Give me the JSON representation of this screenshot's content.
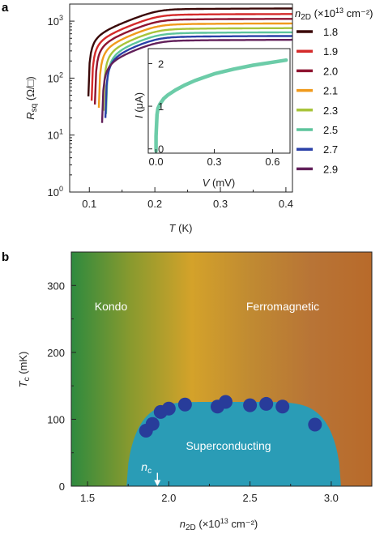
{
  "panels": {
    "a": {
      "letter": "a"
    },
    "b": {
      "letter": "b"
    }
  },
  "chart_data": [
    {
      "panel": "a",
      "type": "line",
      "xlabel_var": "T",
      "xlabel_unit": " (K)",
      "ylabel_var": "R",
      "ylabel_sub": "sq",
      "ylabel_unit": " (Ω/□)",
      "yscale": "log",
      "xlim": [
        0.07,
        0.41
      ],
      "ylim_log10": [
        0,
        3.3
      ],
      "xticks": [
        0.1,
        0.2,
        0.3,
        0.4
      ],
      "xtick_labels": [
        "0.1",
        "0.2",
        "0.3",
        "0.4"
      ],
      "yticks_log10": [
        0,
        1,
        2,
        3
      ],
      "ytick_labels": [
        {
          "base": "10",
          "exp": "0"
        },
        {
          "base": "10",
          "exp": "1"
        },
        {
          "base": "10",
          "exp": "2"
        },
        {
          "base": "10",
          "exp": "3"
        }
      ],
      "legend_title": {
        "var": "n",
        "sub": "2D",
        "unit": " (×10",
        "exp": "13",
        "tail": " cm⁻²)"
      },
      "series": [
        {
          "name": "1.8",
          "color": "#3a0808",
          "Tc": 0.098,
          "Rn": 1700
        },
        {
          "name": "1.9",
          "color": "#d42a2a",
          "Tc": 0.103,
          "Rn": 1360
        },
        {
          "name": "2.0",
          "color": "#8e1430",
          "Tc": 0.108,
          "Rn": 1120
        },
        {
          "name": "2.1",
          "color": "#f09a1c",
          "Tc": 0.114,
          "Rn": 930
        },
        {
          "name": "2.3",
          "color": "#a8c43a",
          "Tc": 0.121,
          "Rn": 770
        },
        {
          "name": "2.5",
          "color": "#5cc49c",
          "Tc": 0.125,
          "Rn": 650
        },
        {
          "name": "2.7",
          "color": "#2a40a8",
          "Tc": 0.124,
          "Rn": 560
        },
        {
          "name": "2.9",
          "color": "#62205a",
          "Tc": 0.119,
          "Rn": 480
        }
      ],
      "inset": {
        "type": "line",
        "xlabel_var": "V",
        "xlabel_unit": " (mV)",
        "ylabel_var": "I",
        "ylabel_unit": " (μA)",
        "xlim": [
          -0.04,
          0.69
        ],
        "ylim": [
          -0.1,
          2.35
        ],
        "xticks": [
          0.0,
          0.3,
          0.6
        ],
        "xtick_labels": [
          "0.0",
          "0.3",
          "0.6"
        ],
        "yticks": [
          0,
          1,
          2
        ],
        "ytick_labels": [
          "0",
          "1",
          "2"
        ],
        "color": "#6ccca8",
        "x": [
          0.0,
          0.0,
          0.005,
          0.01,
          0.02,
          0.04,
          0.06,
          0.1,
          0.15,
          0.2,
          0.3,
          0.4,
          0.5,
          0.6,
          0.67
        ],
        "y": [
          -0.05,
          0.3,
          0.8,
          0.95,
          1.05,
          1.18,
          1.26,
          1.38,
          1.5,
          1.6,
          1.76,
          1.87,
          1.96,
          2.03,
          2.08
        ]
      }
    },
    {
      "panel": "b",
      "type": "scatter",
      "xlabel_var": "n",
      "xlabel_sub": "2D",
      "xlabel_unit": " (×10",
      "xlabel_exp": "13",
      "xlabel_tail": " cm⁻²)",
      "ylabel_var": "T",
      "ylabel_sub": "c",
      "ylabel_unit": " (mK)",
      "xlim": [
        1.4,
        3.25
      ],
      "ylim": [
        0,
        350
      ],
      "xticks": [
        1.5,
        2.0,
        2.5,
        3.0
      ],
      "xtick_labels": [
        "1.5",
        "2.0",
        "2.5",
        "3.0"
      ],
      "yticks": [
        0,
        100,
        200,
        300
      ],
      "ytick_labels": [
        "0",
        "100",
        "200",
        "300"
      ],
      "background_gradient": [
        "#2e8a3e",
        "#8a9a2e",
        "#d4a22a",
        "#c08a32",
        "#b87436",
        "#b86a2a"
      ],
      "dome_color": "#2a9cb6",
      "regions": {
        "kondo": "Kondo",
        "ferro": "Ferromagnetic",
        "sc": "Superconducting"
      },
      "nc_label": {
        "var": "n",
        "sub": "c"
      },
      "nc_value": 1.93,
      "point_color": "#283c9a",
      "x": [
        1.86,
        1.9,
        1.95,
        2.0,
        2.1,
        2.3,
        2.35,
        2.5,
        2.6,
        2.7,
        2.9
      ],
      "y": [
        83,
        93,
        111,
        116,
        122,
        119,
        126,
        121,
        123,
        119,
        92
      ]
    }
  ]
}
